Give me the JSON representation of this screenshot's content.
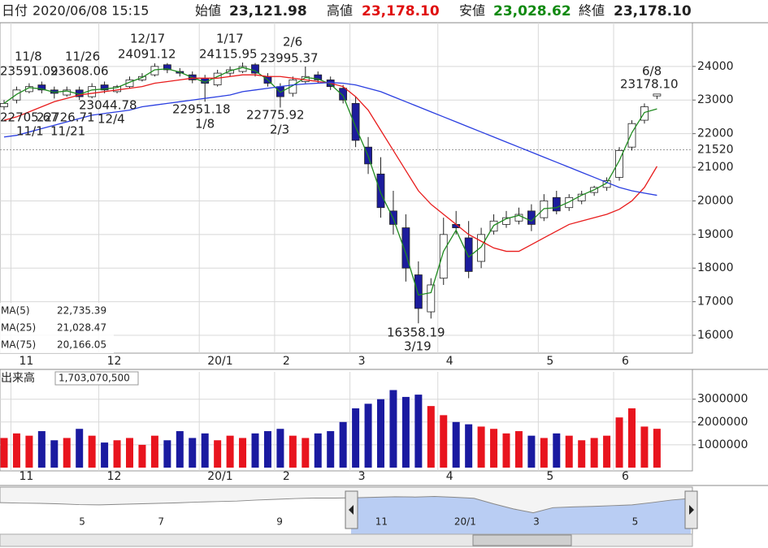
{
  "header": {
    "date_label": "日付",
    "date": "2020/06/08 15:15",
    "open_label": "始値",
    "open": "23,121.98",
    "high_label": "高値",
    "high": "23,178.10",
    "low_label": "安値",
    "low": "23,028.62",
    "close_label": "終値",
    "close": "23,178.10"
  },
  "chart_data": [
    {
      "type": "candlestick",
      "categories": [
        null,
        "11",
        null,
        null,
        null,
        null,
        null,
        null,
        "12",
        null,
        null,
        null,
        null,
        null,
        null,
        null,
        "20/1",
        null,
        null,
        null,
        null,
        null,
        "2",
        null,
        null,
        null,
        null,
        null,
        "3",
        null,
        null,
        null,
        null,
        null,
        null,
        "4",
        null,
        null,
        null,
        null,
        null,
        null,
        null,
        "5",
        null,
        null,
        null,
        null,
        null,
        "6",
        null,
        null,
        null
      ],
      "open": [
        22800,
        23000,
        23250,
        23450,
        23300,
        23150,
        23300,
        23100,
        23450,
        23250,
        23400,
        23600,
        23750,
        24050,
        23850,
        23750,
        23650,
        23450,
        23800,
        23850,
        24050,
        23700,
        23400,
        23200,
        23550,
        23750,
        23600,
        23350,
        22900,
        21600,
        20800,
        19700,
        19200,
        17800,
        16700,
        17700,
        19300,
        18900,
        18200,
        19100,
        19300,
        19400,
        19700,
        19500,
        20100,
        19800,
        20000,
        20250,
        20400,
        20700,
        21600,
        22400,
        23121.98
      ],
      "high": [
        23000,
        23400,
        23500,
        23550,
        23400,
        23400,
        23400,
        23500,
        23550,
        23450,
        23700,
        23800,
        24091.12,
        24100,
        23950,
        23850,
        23750,
        23900,
        24000,
        24115.95,
        24100,
        23800,
        23500,
        23700,
        23995.37,
        23850,
        23700,
        23450,
        23100,
        21900,
        21300,
        20300,
        19600,
        18200,
        17700,
        19500,
        19700,
        19400,
        19200,
        19600,
        19700,
        19800,
        19900,
        20200,
        20300,
        20200,
        20300,
        20450,
        20700,
        21600,
        22400,
        22900,
        23178.1
      ],
      "low": [
        22705.67,
        22900,
        23200,
        23200,
        23044.78,
        23100,
        23000,
        23050,
        23200,
        23200,
        23350,
        23550,
        23700,
        23800,
        23700,
        23500,
        22951.18,
        23400,
        23700,
        23800,
        23700,
        23400,
        22775.92,
        23100,
        23500,
        23500,
        23300,
        22900,
        21600,
        20800,
        19500,
        19000,
        17600,
        16358.19,
        16500,
        17500,
        19000,
        17700,
        18000,
        19000,
        19200,
        19300,
        19100,
        19400,
        19600,
        19700,
        19900,
        20150,
        20300,
        20600,
        21500,
        22300,
        23028.62
      ],
      "close": [
        22900,
        23300,
        23400,
        23300,
        23200,
        23300,
        23100,
        23400,
        23300,
        23400,
        23600,
        23700,
        24000,
        23900,
        23800,
        23600,
        23500,
        23800,
        23900,
        24000,
        23800,
        23500,
        23100,
        23600,
        23700,
        23600,
        23400,
        23000,
        21800,
        21100,
        19800,
        19300,
        18000,
        16800,
        17500,
        19000,
        19200,
        17900,
        19000,
        19400,
        19500,
        19600,
        19300,
        20000,
        19700,
        20100,
        20200,
        20400,
        20600,
        21500,
        22300,
        22800,
        23178.1
      ],
      "up_color": "#ffffff",
      "down_color": "#1c1c9c",
      "ylim": [
        15470,
        25300
      ],
      "yticks": [
        16000,
        17000,
        18000,
        19000,
        20000,
        21000,
        22000,
        23000,
        24000
      ],
      "grid": true,
      "reference_line": {
        "value": 21520,
        "color": "#ff8000"
      },
      "series": [
        {
          "name": "MA(5)",
          "color": "#1f8a1f",
          "last_value_label": "22,735.39",
          "values": [
            22900,
            23170,
            23370,
            23330,
            23230,
            23270,
            23170,
            23300,
            23330,
            23370,
            23530,
            23670,
            23900,
            23930,
            23830,
            23670,
            23530,
            23700,
            23870,
            23970,
            23870,
            23600,
            23230,
            23430,
            23670,
            23630,
            23470,
            23130,
            22200,
            21330,
            20230,
            19470,
            18430,
            17200,
            17270,
            18500,
            19130,
            18330,
            18630,
            19270,
            19470,
            19570,
            19400,
            19770,
            19800,
            19970,
            20170,
            20330,
            20530,
            21200,
            22030,
            22630,
            22735.39
          ]
        },
        {
          "name": "MA(25)",
          "color": "#e81c1c",
          "last_value_label": "21,028.47",
          "values": [
            22400,
            22500,
            22650,
            22800,
            22950,
            23050,
            23150,
            23200,
            23250,
            23300,
            23350,
            23400,
            23500,
            23550,
            23600,
            23650,
            23650,
            23650,
            23700,
            23750,
            23750,
            23700,
            23700,
            23650,
            23600,
            23550,
            23500,
            23400,
            23100,
            22700,
            22100,
            21500,
            20900,
            20300,
            19900,
            19600,
            19300,
            19000,
            18800,
            18600,
            18500,
            18500,
            18700,
            18900,
            19100,
            19300,
            19400,
            19500,
            19600,
            19750,
            20000,
            20400,
            21028.47
          ]
        },
        {
          "name": "MA(75)",
          "color": "#2a3ee0",
          "last_value_label": "20,166.05",
          "values": [
            21900,
            21950,
            22050,
            22150,
            22250,
            22350,
            22450,
            22550,
            22600,
            22650,
            22700,
            22800,
            22850,
            22900,
            22950,
            23000,
            23050,
            23100,
            23150,
            23250,
            23300,
            23350,
            23400,
            23450,
            23480,
            23500,
            23520,
            23500,
            23450,
            23350,
            23250,
            23100,
            22950,
            22800,
            22650,
            22500,
            22350,
            22200,
            22050,
            21900,
            21750,
            21600,
            21450,
            21300,
            21150,
            21000,
            20850,
            20700,
            20550,
            20400,
            20300,
            20230,
            20166.05
          ]
        }
      ],
      "annotations": [
        {
          "date": "11/8",
          "text": "23591.09"
        },
        {
          "date": "11/26",
          "text": "23608.06"
        },
        {
          "date": "12/17",
          "text": "24091.12"
        },
        {
          "date": "1/17",
          "text": "24115.95"
        },
        {
          "date": "2/6",
          "text": "23995.37"
        },
        {
          "date": "11/1",
          "text": "22705.67"
        },
        {
          "date": "11/21",
          "text": "22726.71"
        },
        {
          "date": "12/4",
          "text": "23044.78"
        },
        {
          "date": "1/8",
          "text": "22951.18"
        },
        {
          "date": "2/3",
          "text": "22775.92"
        },
        {
          "date": "6/8",
          "text": "23178.10"
        },
        {
          "date": "3/19",
          "text": "16358.19"
        }
      ]
    },
    {
      "type": "bar",
      "title": "出来高",
      "readout": "1,703,070,500",
      "categories": [
        null,
        "11",
        null,
        null,
        null,
        null,
        null,
        null,
        "12",
        null,
        null,
        null,
        null,
        null,
        null,
        null,
        "20/1",
        null,
        null,
        null,
        null,
        null,
        "2",
        null,
        null,
        null,
        null,
        null,
        "3",
        null,
        null,
        null,
        null,
        null,
        null,
        "4",
        null,
        null,
        null,
        null,
        null,
        null,
        null,
        "5",
        null,
        null,
        null,
        null,
        null,
        "6",
        null,
        null,
        null
      ],
      "values": [
        1300000,
        1500000,
        1400000,
        1600000,
        1200000,
        1300000,
        1700000,
        1400000,
        1100000,
        1200000,
        1300000,
        1000000,
        1400000,
        1200000,
        1600000,
        1300000,
        1500000,
        1200000,
        1400000,
        1300000,
        1500000,
        1600000,
        1700000,
        1400000,
        1300000,
        1500000,
        1600000,
        2000000,
        2600000,
        2800000,
        3000000,
        3400000,
        3100000,
        3200000,
        2700000,
        2300000,
        2000000,
        1900000,
        1800000,
        1700000,
        1500000,
        1600000,
        1400000,
        1300000,
        1500000,
        1400000,
        1200000,
        1300000,
        1400000,
        2200000,
        2600000,
        1800000,
        1703070.5
      ],
      "up_color": "#e8141e",
      "down_color": "#1a1aa0",
      "ylim": [
        0,
        4200000
      ],
      "yticks": [
        1000000,
        2000000,
        3000000
      ],
      "grid": true
    },
    {
      "type": "area",
      "categories": [
        null,
        null,
        null,
        null,
        "5",
        null,
        null,
        null,
        "7",
        null,
        null,
        null,
        null,
        null,
        "9",
        null,
        null,
        null,
        null,
        "11",
        null,
        null,
        null,
        "20/1",
        null,
        null,
        null,
        "3",
        null,
        null,
        null,
        null,
        "5",
        null,
        null,
        null
      ],
      "values": [
        21500,
        21300,
        21200,
        21000,
        20700,
        20600,
        20800,
        21000,
        21200,
        21400,
        21700,
        21900,
        22100,
        22500,
        22800,
        23100,
        23300,
        23300,
        23400,
        23600,
        23800,
        23700,
        23900,
        23600,
        23200,
        21000,
        19000,
        17500,
        19500,
        19800,
        20000,
        20300,
        20600,
        21500,
        22500,
        23178.1
      ],
      "ylim": [
        10000,
        26000
      ],
      "color": "#b9cdf3"
    }
  ]
}
